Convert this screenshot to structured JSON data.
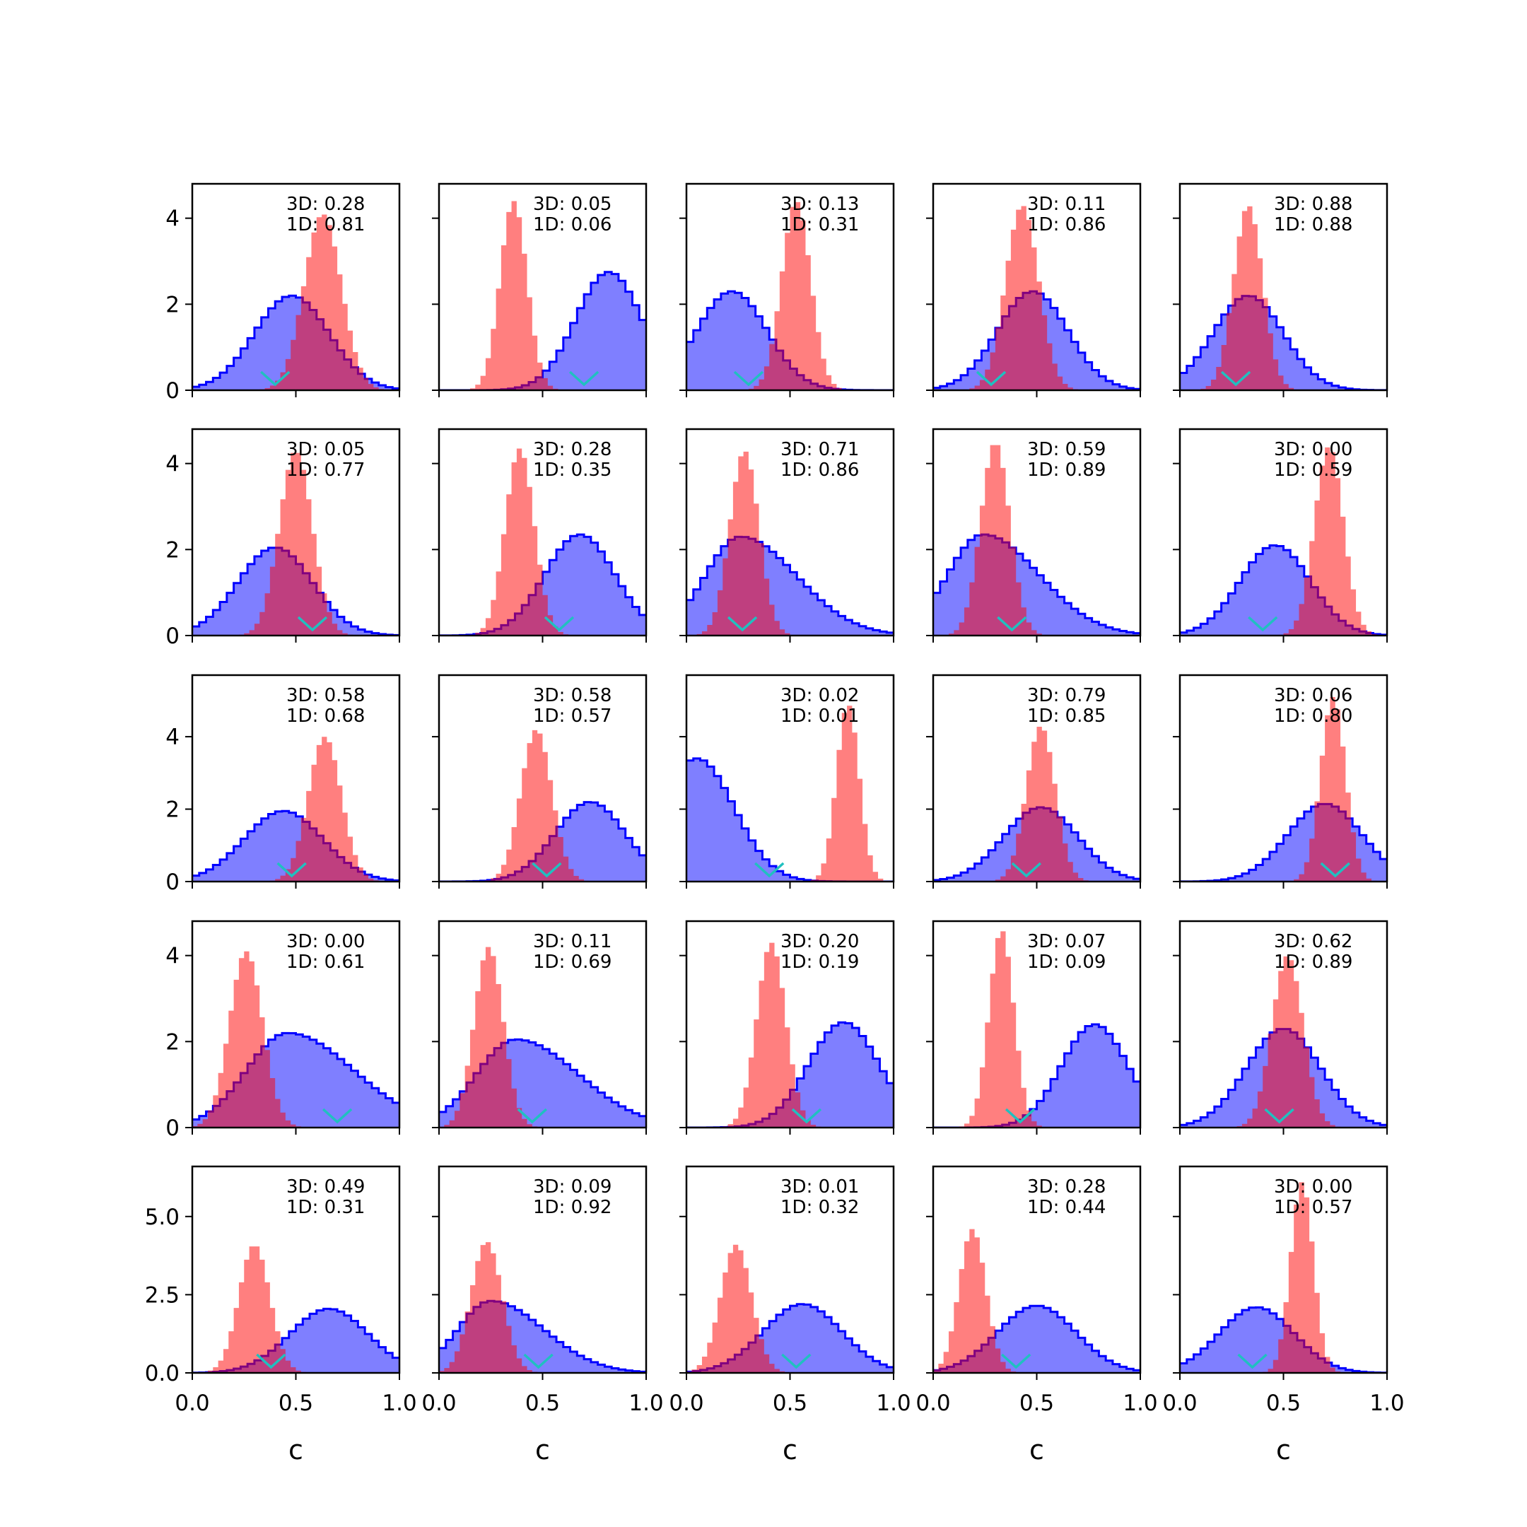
{
  "chart_data": {
    "type": "histogram-grid",
    "rows": 5,
    "cols": 5,
    "xlabel": "c",
    "xlim": [
      0,
      1
    ],
    "x_ticks": [
      "0.0",
      "0.5",
      "1.0"
    ],
    "row_ylim": [
      [
        0,
        4.8
      ],
      [
        0,
        4.8
      ],
      [
        0,
        5.7
      ],
      [
        0,
        4.8
      ],
      [
        0,
        6.6
      ]
    ],
    "row_y_ticks": [
      [
        "0",
        "2",
        "4"
      ],
      [
        "0",
        "2",
        "4"
      ],
      [
        "0",
        "2",
        "4"
      ],
      [
        "0",
        "2",
        "4"
      ],
      [
        "0.0",
        "2.5",
        "5.0"
      ]
    ],
    "colors": {
      "prior": "#0000ff",
      "prior_fill": "#7f7fff",
      "posterior": "#ff0000",
      "truth_marker": "#20c0c0"
    },
    "panels": [
      {
        "score_3d": "3D: 0.28",
        "score_1d": "1D: 0.81",
        "prior_mu": 0.48,
        "prior_sd": 0.18,
        "prior_peak": 2.2,
        "prior_skew": 0,
        "post_mu": 0.63,
        "post_sd": 0.09,
        "post_peak": 4.1,
        "truth": 0.4
      },
      {
        "score_3d": "3D: 0.05",
        "score_1d": "1D: 0.06",
        "prior_mu": 0.82,
        "prior_sd": 0.16,
        "prior_peak": 2.75,
        "prior_skew": 0,
        "post_mu": 0.36,
        "post_sd": 0.065,
        "post_peak": 4.4,
        "truth": 0.7
      },
      {
        "score_3d": "3D: 0.13",
        "score_1d": "1D: 0.31",
        "prior_mu": 0.22,
        "prior_sd": 0.17,
        "prior_peak": 2.3,
        "prior_skew": 0,
        "post_mu": 0.53,
        "post_sd": 0.07,
        "post_peak": 4.4,
        "truth": 0.3
      },
      {
        "score_3d": "3D: 0.11",
        "score_1d": "1D: 0.86",
        "prior_mu": 0.48,
        "prior_sd": 0.17,
        "prior_peak": 2.3,
        "prior_skew": 0,
        "post_mu": 0.43,
        "post_sd": 0.08,
        "post_peak": 4.3,
        "truth": 0.28
      },
      {
        "score_3d": "3D: 0.88",
        "score_1d": "1D: 0.88",
        "prior_mu": 0.33,
        "prior_sd": 0.17,
        "prior_peak": 2.2,
        "prior_skew": 0,
        "post_mu": 0.33,
        "post_sd": 0.07,
        "post_peak": 4.3,
        "truth": 0.27
      },
      {
        "score_3d": "3D: 0.05",
        "score_1d": "1D: 0.77",
        "prior_mu": 0.4,
        "prior_sd": 0.18,
        "prior_peak": 2.05,
        "prior_skew": 0,
        "post_mu": 0.5,
        "post_sd": 0.08,
        "post_peak": 4.3,
        "truth": 0.58
      },
      {
        "score_3d": "3D: 0.28",
        "score_1d": "1D: 0.35",
        "prior_mu": 0.68,
        "prior_sd": 0.17,
        "prior_peak": 2.35,
        "prior_skew": 0,
        "post_mu": 0.39,
        "post_sd": 0.07,
        "post_peak": 4.35,
        "truth": 0.58
      },
      {
        "score_3d": "3D: 0.71",
        "score_1d": "1D: 0.86",
        "prior_mu": 0.26,
        "prior_sd": 0.17,
        "prior_peak": 2.3,
        "prior_skew": 0.6,
        "post_mu": 0.28,
        "post_sd": 0.07,
        "post_peak": 4.3,
        "truth": 0.27
      },
      {
        "score_3d": "3D: 0.59",
        "score_1d": "1D: 0.89",
        "prior_mu": 0.24,
        "prior_sd": 0.17,
        "prior_peak": 2.35,
        "prior_skew": 0.6,
        "post_mu": 0.3,
        "post_sd": 0.07,
        "post_peak": 4.5,
        "truth": 0.38
      },
      {
        "score_3d": "3D: 0.00",
        "score_1d": "1D: 0.59",
        "prior_mu": 0.46,
        "prior_sd": 0.17,
        "prior_peak": 2.1,
        "prior_skew": 0,
        "post_mu": 0.72,
        "post_sd": 0.07,
        "post_peak": 4.4,
        "truth": 0.4
      },
      {
        "score_3d": "3D: 0.58",
        "score_1d": "1D: 0.68",
        "prior_mu": 0.44,
        "prior_sd": 0.19,
        "prior_peak": 1.95,
        "prior_skew": 0,
        "post_mu": 0.64,
        "post_sd": 0.08,
        "post_peak": 4.0,
        "truth": 0.48
      },
      {
        "score_3d": "3D: 0.58",
        "score_1d": "1D: 0.57",
        "prior_mu": 0.73,
        "prior_sd": 0.17,
        "prior_peak": 2.2,
        "prior_skew": 0,
        "post_mu": 0.47,
        "post_sd": 0.075,
        "post_peak": 4.2,
        "truth": 0.52
      },
      {
        "score_3d": "3D: 0.02",
        "score_1d": "1D: 0.01",
        "prior_mu": 0.05,
        "prior_sd": 0.18,
        "prior_peak": 3.4,
        "prior_skew": 0,
        "post_mu": 0.78,
        "post_sd": 0.055,
        "post_peak": 4.9,
        "truth": 0.4
      },
      {
        "score_3d": "3D: 0.79",
        "score_1d": "1D: 0.85",
        "prior_mu": 0.52,
        "prior_sd": 0.18,
        "prior_peak": 2.05,
        "prior_skew": 0,
        "post_mu": 0.52,
        "post_sd": 0.07,
        "post_peak": 4.3,
        "truth": 0.45
      },
      {
        "score_3d": "3D: 0.06",
        "score_1d": "1D: 0.80",
        "prior_mu": 0.7,
        "prior_sd": 0.18,
        "prior_peak": 2.15,
        "prior_skew": 0,
        "post_mu": 0.74,
        "post_sd": 0.06,
        "post_peak": 5.1,
        "truth": 0.75
      },
      {
        "score_3d": "3D: 0.00",
        "score_1d": "1D: 0.61",
        "prior_mu": 0.46,
        "prior_sd": 0.2,
        "prior_peak": 2.2,
        "prior_skew": 0.6,
        "post_mu": 0.26,
        "post_sd": 0.08,
        "post_peak": 4.1,
        "truth": 0.7
      },
      {
        "score_3d": "3D: 0.11",
        "score_1d": "1D: 0.69",
        "prior_mu": 0.37,
        "prior_sd": 0.19,
        "prior_peak": 2.05,
        "prior_skew": 0.6,
        "post_mu": 0.24,
        "post_sd": 0.07,
        "post_peak": 4.2,
        "truth": 0.45
      },
      {
        "score_3d": "3D: 0.20",
        "score_1d": "1D: 0.19",
        "prior_mu": 0.76,
        "prior_sd": 0.17,
        "prior_peak": 2.45,
        "prior_skew": 0,
        "post_mu": 0.41,
        "post_sd": 0.07,
        "post_peak": 4.3,
        "truth": 0.58
      },
      {
        "score_3d": "3D: 0.07",
        "score_1d": "1D: 0.09",
        "prior_mu": 0.78,
        "prior_sd": 0.16,
        "prior_peak": 2.4,
        "prior_skew": 0,
        "post_mu": 0.33,
        "post_sd": 0.06,
        "post_peak": 4.6,
        "truth": 0.42
      },
      {
        "score_3d": "3D: 0.62",
        "score_1d": "1D: 0.89",
        "prior_mu": 0.5,
        "prior_sd": 0.18,
        "prior_peak": 2.3,
        "prior_skew": 0,
        "post_mu": 0.52,
        "post_sd": 0.075,
        "post_peak": 4.0,
        "truth": 0.48
      },
      {
        "score_3d": "3D: 0.49",
        "score_1d": "1D: 0.31",
        "prior_mu": 0.66,
        "prior_sd": 0.19,
        "prior_peak": 2.05,
        "prior_skew": 0,
        "post_mu": 0.3,
        "post_sd": 0.075,
        "post_peak": 4.1,
        "truth": 0.38
      },
      {
        "score_3d": "3D: 0.09",
        "score_1d": "1D: 0.92",
        "prior_mu": 0.25,
        "prior_sd": 0.16,
        "prior_peak": 2.3,
        "prior_skew": 0.6,
        "post_mu": 0.23,
        "post_sd": 0.075,
        "post_peak": 4.2,
        "truth": 0.48
      },
      {
        "score_3d": "3D: 0.01",
        "score_1d": "1D: 0.32",
        "prior_mu": 0.56,
        "prior_sd": 0.19,
        "prior_peak": 2.2,
        "prior_skew": 0,
        "post_mu": 0.24,
        "post_sd": 0.075,
        "post_peak": 4.1,
        "truth": 0.53
      },
      {
        "score_3d": "3D: 0.28",
        "score_1d": "1D: 0.44",
        "prior_mu": 0.5,
        "prior_sd": 0.19,
        "prior_peak": 2.15,
        "prior_skew": 0,
        "post_mu": 0.19,
        "post_sd": 0.065,
        "post_peak": 4.6,
        "truth": 0.4
      },
      {
        "score_3d": "3D: 0.00",
        "score_1d": "1D: 0.57",
        "prior_mu": 0.37,
        "prior_sd": 0.18,
        "prior_peak": 2.1,
        "prior_skew": 0,
        "post_mu": 0.59,
        "post_sd": 0.055,
        "post_peak": 6.1,
        "truth": 0.35
      }
    ]
  }
}
